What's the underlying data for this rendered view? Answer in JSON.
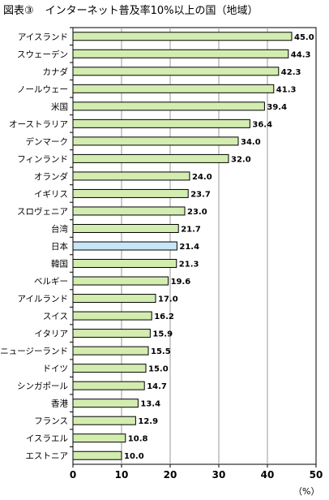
{
  "title": {
    "label": "図表③",
    "text": "インターネット普及率10%以上の国（地域）"
  },
  "unit_label": "（%）",
  "colors": {
    "bar_fill": "#d3ecb0",
    "bar_stroke": "#000000",
    "highlight_fill": "#c7e6f7",
    "grid": "#9a9a9a"
  },
  "chart_data": {
    "type": "bar",
    "orientation": "horizontal",
    "title": "インターネット普及率10%以上の国（地域）",
    "xlabel": "（%）",
    "xlim": [
      0,
      50
    ],
    "xticks": [
      0,
      10,
      20,
      30,
      40,
      50
    ],
    "grid": true,
    "highlight_category": "日本",
    "categories": [
      "アイスランド",
      "スウェーデン",
      "カナダ",
      "ノールウェー",
      "米国",
      "オーストラリア",
      "デンマーク",
      "フィンランド",
      "オランダ",
      "イギリス",
      "スロヴェニア",
      "台湾",
      "日本",
      "韓国",
      "ベルギー",
      "アイルランド",
      "スイス",
      "イタリア",
      "ニュージーランド",
      "ドイツ",
      "シンガポール",
      "香港",
      "フランス",
      "イスラエル",
      "エストニア"
    ],
    "values": [
      45.0,
      44.3,
      42.3,
      41.3,
      39.4,
      36.4,
      34.0,
      32.0,
      24.0,
      23.7,
      23.0,
      21.7,
      21.4,
      21.3,
      19.6,
      17.0,
      16.2,
      15.9,
      15.5,
      15.0,
      14.7,
      13.4,
      12.9,
      10.8,
      10.0
    ],
    "value_labels": [
      "45.0",
      "44.3",
      "42.3",
      "41.3",
      "39.4",
      "36.4",
      "34.0",
      "32.0",
      "24.0",
      "23.7",
      "23.0",
      "21.7",
      "21.4",
      "21.3",
      "19.6",
      "17.0",
      "16.2",
      "15.9",
      "15.5",
      "15.0",
      "14.7",
      "13.4",
      "12.9",
      "10.8",
      "10.0"
    ]
  }
}
